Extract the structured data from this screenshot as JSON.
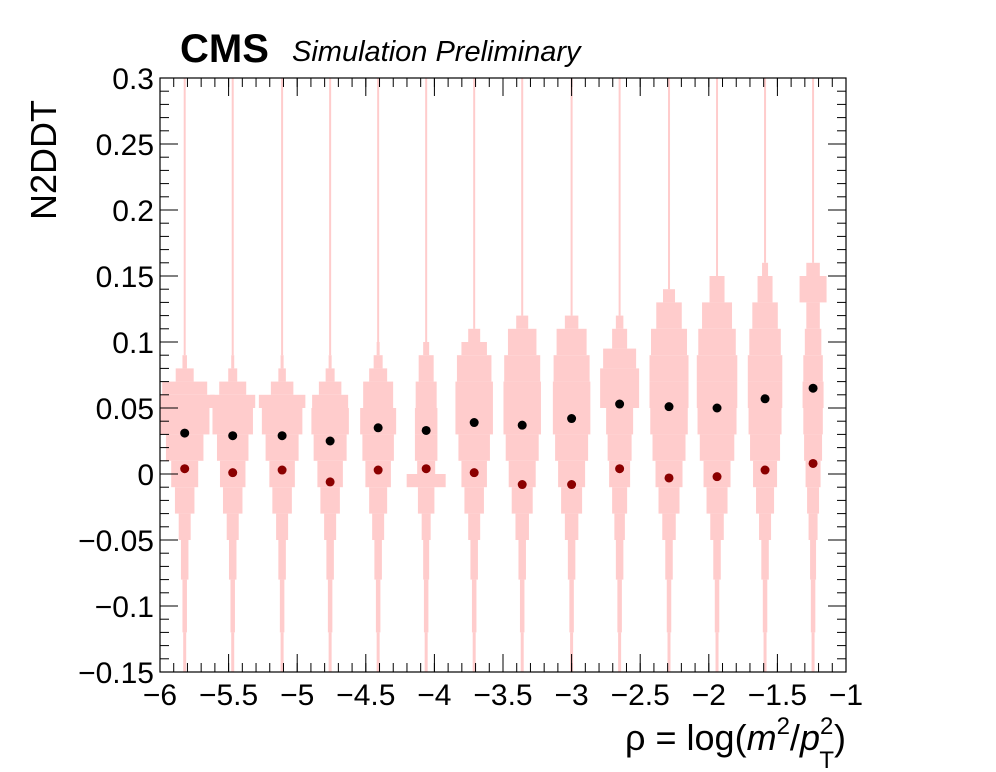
{
  "header": {
    "experiment": "CMS",
    "status": "Simulation Preliminary"
  },
  "colors": {
    "violin_fill": "#ffcccc",
    "median_markers": "#000000",
    "mean_markers": "#8b0000",
    "axes": "#000000"
  },
  "chart_data": {
    "type": "scatter",
    "xlabel": "ρ = log(m²/p_T²)",
    "xlabel_parts": {
      "prefix": "ρ = log(",
      "m": "m",
      "m_sup": "2",
      "slash": "/",
      "p": "p",
      "p_sup": "2",
      "p_sub": "T",
      "suffix": ")"
    },
    "ylabel": "N2DDT",
    "xlim": [
      -6,
      -1
    ],
    "ylim": [
      -0.15,
      0.3
    ],
    "x_ticks": [
      -6,
      -5.5,
      -5,
      -4.5,
      -4,
      -3.5,
      -3,
      -2.5,
      -2,
      -1.5,
      -1
    ],
    "x_tick_labels": [
      "−6",
      "−5.5",
      "−5",
      "−4.5",
      "−4",
      "−3.5",
      "−3",
      "−2.5",
      "−2",
      "−1.5",
      "−1"
    ],
    "y_ticks": [
      -0.15,
      -0.1,
      -0.05,
      0,
      0.05,
      0.1,
      0.15,
      0.2,
      0.25,
      0.3
    ],
    "y_tick_labels": [
      "−0.15",
      "−0.1",
      "−0.05",
      "0",
      "0.05",
      "0.1",
      "0.15",
      "0.2",
      "0.25",
      "0.3"
    ],
    "grid": false,
    "x": [
      -5.82,
      -5.47,
      -5.11,
      -4.76,
      -4.41,
      -4.06,
      -3.71,
      -3.36,
      -3.0,
      -2.65,
      -2.29,
      -1.94,
      -1.59,
      -1.24
    ],
    "series": [
      {
        "values": [
          0.031,
          0.029,
          0.029,
          0.025,
          0.035,
          0.033,
          0.039,
          0.037,
          0.042,
          0.053,
          0.051,
          0.05,
          0.057,
          0.065
        ]
      },
      {
        "values": [
          0.004,
          0.001,
          0.003,
          -0.006,
          0.003,
          0.004,
          0.001,
          -0.008,
          -0.008,
          0.004,
          -0.003,
          -0.002,
          0.003,
          0.008
        ]
      }
    ],
    "violins": [
      {
        "x": -5.82,
        "profile": [
          [
            -0.16,
            0.002
          ],
          [
            -0.12,
            0.004
          ],
          [
            -0.08,
            0.006
          ],
          [
            -0.05,
            0.01
          ],
          [
            -0.03,
            0.016
          ],
          [
            -0.01,
            0.026
          ],
          [
            0.01,
            0.036
          ],
          [
            0.03,
            0.05
          ],
          [
            0.05,
            0.066
          ],
          [
            0.06,
            0.08
          ],
          [
            0.07,
            0.06
          ],
          [
            0.08,
            0.024
          ],
          [
            0.09,
            0.006
          ],
          [
            0.3,
            0.001
          ]
        ]
      },
      {
        "x": -5.47,
        "profile": [
          [
            -0.16,
            0.002
          ],
          [
            -0.12,
            0.004
          ],
          [
            -0.08,
            0.006
          ],
          [
            -0.05,
            0.01
          ],
          [
            -0.03,
            0.016
          ],
          [
            -0.01,
            0.026
          ],
          [
            0.01,
            0.034
          ],
          [
            0.03,
            0.042
          ],
          [
            0.05,
            0.054
          ],
          [
            0.06,
            0.06
          ],
          [
            0.07,
            0.036
          ],
          [
            0.08,
            0.012
          ],
          [
            0.09,
            0.004
          ],
          [
            0.3,
            0.001
          ]
        ]
      },
      {
        "x": -5.11,
        "profile": [
          [
            -0.16,
            0.002
          ],
          [
            -0.12,
            0.004
          ],
          [
            -0.08,
            0.006
          ],
          [
            -0.05,
            0.01
          ],
          [
            -0.03,
            0.016
          ],
          [
            -0.01,
            0.026
          ],
          [
            0.01,
            0.034
          ],
          [
            0.03,
            0.044
          ],
          [
            0.05,
            0.054
          ],
          [
            0.06,
            0.062
          ],
          [
            0.07,
            0.03
          ],
          [
            0.08,
            0.01
          ],
          [
            0.09,
            0.004
          ],
          [
            0.3,
            0.001
          ]
        ]
      },
      {
        "x": -4.76,
        "profile": [
          [
            -0.16,
            0.002
          ],
          [
            -0.12,
            0.004
          ],
          [
            -0.08,
            0.006
          ],
          [
            -0.05,
            0.01
          ],
          [
            -0.03,
            0.016
          ],
          [
            -0.01,
            0.026
          ],
          [
            0.01,
            0.034
          ],
          [
            0.03,
            0.044
          ],
          [
            0.05,
            0.05
          ],
          [
            0.06,
            0.048
          ],
          [
            0.07,
            0.03
          ],
          [
            0.08,
            0.012
          ],
          [
            0.09,
            0.004
          ],
          [
            0.3,
            0.001
          ]
        ]
      },
      {
        "x": -4.41,
        "profile": [
          [
            -0.16,
            0.002
          ],
          [
            -0.12,
            0.004
          ],
          [
            -0.08,
            0.006
          ],
          [
            -0.05,
            0.01
          ],
          [
            -0.03,
            0.016
          ],
          [
            -0.01,
            0.024
          ],
          [
            0.01,
            0.034
          ],
          [
            0.03,
            0.042
          ],
          [
            0.05,
            0.048
          ],
          [
            0.07,
            0.04
          ],
          [
            0.08,
            0.024
          ],
          [
            0.09,
            0.012
          ],
          [
            0.1,
            0.004
          ],
          [
            0.3,
            0.001
          ]
        ]
      },
      {
        "x": -4.06,
        "profile": [
          [
            -0.16,
            0.002
          ],
          [
            -0.12,
            0.004
          ],
          [
            -0.08,
            0.006
          ],
          [
            -0.05,
            0.008
          ],
          [
            -0.03,
            0.012
          ],
          [
            -0.01,
            0.022
          ],
          [
            0.0,
            0.052
          ],
          [
            0.01,
            0.024
          ],
          [
            0.03,
            0.03
          ],
          [
            0.05,
            0.03
          ],
          [
            0.07,
            0.028
          ],
          [
            0.09,
            0.02
          ],
          [
            0.1,
            0.008
          ],
          [
            0.3,
            0.001
          ]
        ]
      },
      {
        "x": -3.71,
        "profile": [
          [
            -0.16,
            0.002
          ],
          [
            -0.12,
            0.004
          ],
          [
            -0.08,
            0.006
          ],
          [
            -0.05,
            0.01
          ],
          [
            -0.03,
            0.016
          ],
          [
            -0.01,
            0.026
          ],
          [
            0.01,
            0.034
          ],
          [
            0.03,
            0.042
          ],
          [
            0.05,
            0.05
          ],
          [
            0.07,
            0.05
          ],
          [
            0.09,
            0.046
          ],
          [
            0.1,
            0.034
          ],
          [
            0.11,
            0.016
          ],
          [
            0.3,
            0.001
          ]
        ]
      },
      {
        "x": -3.36,
        "profile": [
          [
            -0.16,
            0.002
          ],
          [
            -0.12,
            0.004
          ],
          [
            -0.08,
            0.006
          ],
          [
            -0.05,
            0.01
          ],
          [
            -0.03,
            0.018
          ],
          [
            -0.01,
            0.028
          ],
          [
            0.01,
            0.036
          ],
          [
            0.03,
            0.044
          ],
          [
            0.05,
            0.05
          ],
          [
            0.07,
            0.05
          ],
          [
            0.09,
            0.048
          ],
          [
            0.11,
            0.038
          ],
          [
            0.12,
            0.016
          ],
          [
            0.3,
            0.001
          ]
        ]
      },
      {
        "x": -3.0,
        "profile": [
          [
            -0.16,
            0.002
          ],
          [
            -0.12,
            0.004
          ],
          [
            -0.08,
            0.006
          ],
          [
            -0.05,
            0.01
          ],
          [
            -0.03,
            0.018
          ],
          [
            -0.01,
            0.028
          ],
          [
            0.01,
            0.036
          ],
          [
            0.03,
            0.044
          ],
          [
            0.05,
            0.05
          ],
          [
            0.07,
            0.05
          ],
          [
            0.09,
            0.048
          ],
          [
            0.11,
            0.04
          ],
          [
            0.12,
            0.018
          ],
          [
            0.3,
            0.001
          ]
        ]
      },
      {
        "x": -2.65,
        "profile": [
          [
            -0.16,
            0.002
          ],
          [
            -0.12,
            0.004
          ],
          [
            -0.08,
            0.006
          ],
          [
            -0.05,
            0.01
          ],
          [
            -0.03,
            0.014
          ],
          [
            -0.01,
            0.02
          ],
          [
            0.01,
            0.028
          ],
          [
            0.03,
            0.032
          ],
          [
            0.05,
            0.036
          ],
          [
            0.08,
            0.052
          ],
          [
            0.095,
            0.044
          ],
          [
            0.11,
            0.02
          ],
          [
            0.12,
            0.01
          ],
          [
            0.3,
            0.001
          ]
        ]
      },
      {
        "x": -2.29,
        "profile": [
          [
            -0.16,
            0.002
          ],
          [
            -0.12,
            0.004
          ],
          [
            -0.08,
            0.006
          ],
          [
            -0.05,
            0.01
          ],
          [
            -0.03,
            0.018
          ],
          [
            -0.01,
            0.028
          ],
          [
            0.01,
            0.036
          ],
          [
            0.03,
            0.044
          ],
          [
            0.05,
            0.05
          ],
          [
            0.07,
            0.052
          ],
          [
            0.09,
            0.052
          ],
          [
            0.11,
            0.048
          ],
          [
            0.13,
            0.034
          ],
          [
            0.14,
            0.016
          ],
          [
            0.3,
            0.001
          ]
        ]
      },
      {
        "x": -1.94,
        "profile": [
          [
            -0.16,
            0.002
          ],
          [
            -0.12,
            0.004
          ],
          [
            -0.08,
            0.006
          ],
          [
            -0.05,
            0.01
          ],
          [
            -0.03,
            0.018
          ],
          [
            -0.01,
            0.028
          ],
          [
            0.01,
            0.036
          ],
          [
            0.03,
            0.046
          ],
          [
            0.05,
            0.052
          ],
          [
            0.07,
            0.054
          ],
          [
            0.09,
            0.054
          ],
          [
            0.11,
            0.05
          ],
          [
            0.13,
            0.04
          ],
          [
            0.15,
            0.02
          ],
          [
            0.3,
            0.001
          ]
        ]
      },
      {
        "x": -1.59,
        "profile": [
          [
            -0.16,
            0.002
          ],
          [
            -0.12,
            0.004
          ],
          [
            -0.08,
            0.006
          ],
          [
            -0.05,
            0.01
          ],
          [
            -0.03,
            0.016
          ],
          [
            -0.01,
            0.024
          ],
          [
            0.01,
            0.032
          ],
          [
            0.03,
            0.04
          ],
          [
            0.05,
            0.044
          ],
          [
            0.07,
            0.046
          ],
          [
            0.09,
            0.046
          ],
          [
            0.11,
            0.042
          ],
          [
            0.13,
            0.034
          ],
          [
            0.15,
            0.02
          ],
          [
            0.16,
            0.008
          ],
          [
            0.3,
            0.001
          ]
        ]
      },
      {
        "x": -1.24,
        "profile": [
          [
            -0.16,
            0.002
          ],
          [
            -0.12,
            0.004
          ],
          [
            -0.08,
            0.006
          ],
          [
            -0.05,
            0.008
          ],
          [
            -0.03,
            0.012
          ],
          [
            -0.01,
            0.016
          ],
          [
            0.01,
            0.02
          ],
          [
            0.03,
            0.024
          ],
          [
            0.05,
            0.026
          ],
          [
            0.07,
            0.028
          ],
          [
            0.09,
            0.026
          ],
          [
            0.11,
            0.022
          ],
          [
            0.13,
            0.018
          ],
          [
            0.15,
            0.036
          ],
          [
            0.16,
            0.018
          ],
          [
            0.3,
            0.002
          ]
        ]
      }
    ]
  }
}
